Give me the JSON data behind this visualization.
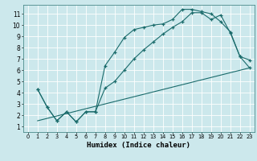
{
  "xlabel": "Humidex (Indice chaleur)",
  "bg_color": "#cce8ec",
  "line_color": "#1a6b6b",
  "grid_color": "#ffffff",
  "xlim": [
    -0.5,
    23.5
  ],
  "ylim": [
    0.5,
    11.8
  ],
  "xticks": [
    0,
    1,
    2,
    3,
    4,
    5,
    6,
    7,
    8,
    9,
    10,
    11,
    12,
    13,
    14,
    15,
    16,
    17,
    18,
    19,
    20,
    21,
    22,
    23
  ],
  "yticks": [
    1,
    2,
    3,
    4,
    5,
    6,
    7,
    8,
    9,
    10,
    11
  ],
  "line1_x": [
    1,
    2,
    3,
    4,
    5,
    6,
    7,
    8,
    9,
    10,
    11,
    12,
    13,
    14,
    15,
    16,
    17,
    18,
    19,
    20,
    21,
    22,
    23
  ],
  "line1_y": [
    4.3,
    2.7,
    1.5,
    2.3,
    1.4,
    2.3,
    2.3,
    6.4,
    7.6,
    8.9,
    9.6,
    9.8,
    10.0,
    10.1,
    10.5,
    11.4,
    11.4,
    11.2,
    11.0,
    10.3,
    9.4,
    7.2,
    6.9
  ],
  "line2_x": [
    1,
    2,
    3,
    4,
    5,
    6,
    7,
    8,
    9,
    10,
    11,
    12,
    13,
    14,
    15,
    16,
    17,
    18,
    19,
    20,
    21,
    22,
    23
  ],
  "line2_y": [
    4.3,
    2.7,
    1.5,
    2.3,
    1.4,
    2.3,
    2.3,
    4.4,
    5.0,
    6.0,
    7.0,
    7.8,
    8.5,
    9.2,
    9.8,
    10.3,
    11.1,
    11.1,
    10.5,
    10.9,
    9.3,
    7.2,
    6.2
  ],
  "line3_x": [
    1,
    23
  ],
  "line3_y": [
    1.5,
    6.2
  ]
}
